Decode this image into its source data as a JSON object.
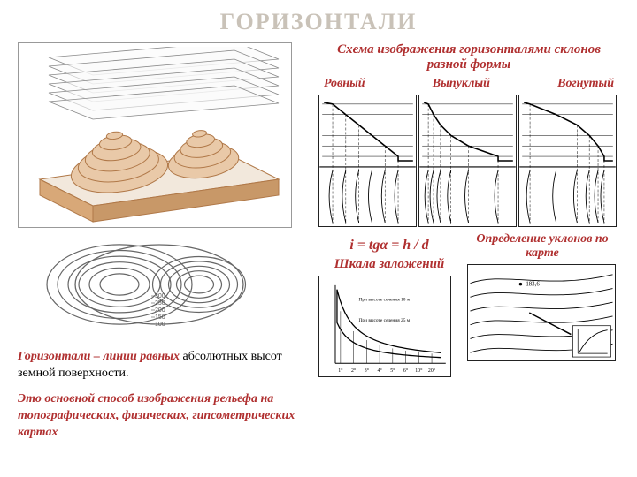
{
  "colors": {
    "title": "#c9c2b8",
    "accent": "#b03030",
    "terrain_fill": "#e9c9a8",
    "terrain_stroke": "#b07848",
    "base_side": "#d8a878",
    "base_top": "#f2e8dc",
    "plane_stroke": "#888888",
    "black": "#222222",
    "contour_stroke": "#666666"
  },
  "title": "ГОРИЗОНТАЛИ",
  "slopes": {
    "heading": "Схема изображения горизонталями склонов разной формы",
    "labels": [
      "Ровный",
      "Выпуклый",
      "Вогнутый"
    ]
  },
  "plan": {
    "levels": [
      "100",
      "150",
      "200",
      "250",
      "300"
    ]
  },
  "definition": {
    "lead_bold": "Горизонтали – линии равных",
    "lead_rest": " абсолютных высот земной поверхности.",
    "p2_bold": "Это основной способ изображения рельефа на топографических, физических, гипсометрических картах",
    "p2_rest": ""
  },
  "formula": "i = tgα = h / d",
  "scale_label": "Шкала заложений",
  "slope_def_title": "Определение уклонов по карте",
  "scale_chart": {
    "x_ticks": [
      "1°",
      "2°",
      "3°",
      "4°",
      "5°",
      "6°",
      "10°",
      "20°"
    ],
    "annot1": "При высоте сечения 10 м",
    "annot2": "При высоте сечения 25 м"
  },
  "map_dot_label": "183,6"
}
